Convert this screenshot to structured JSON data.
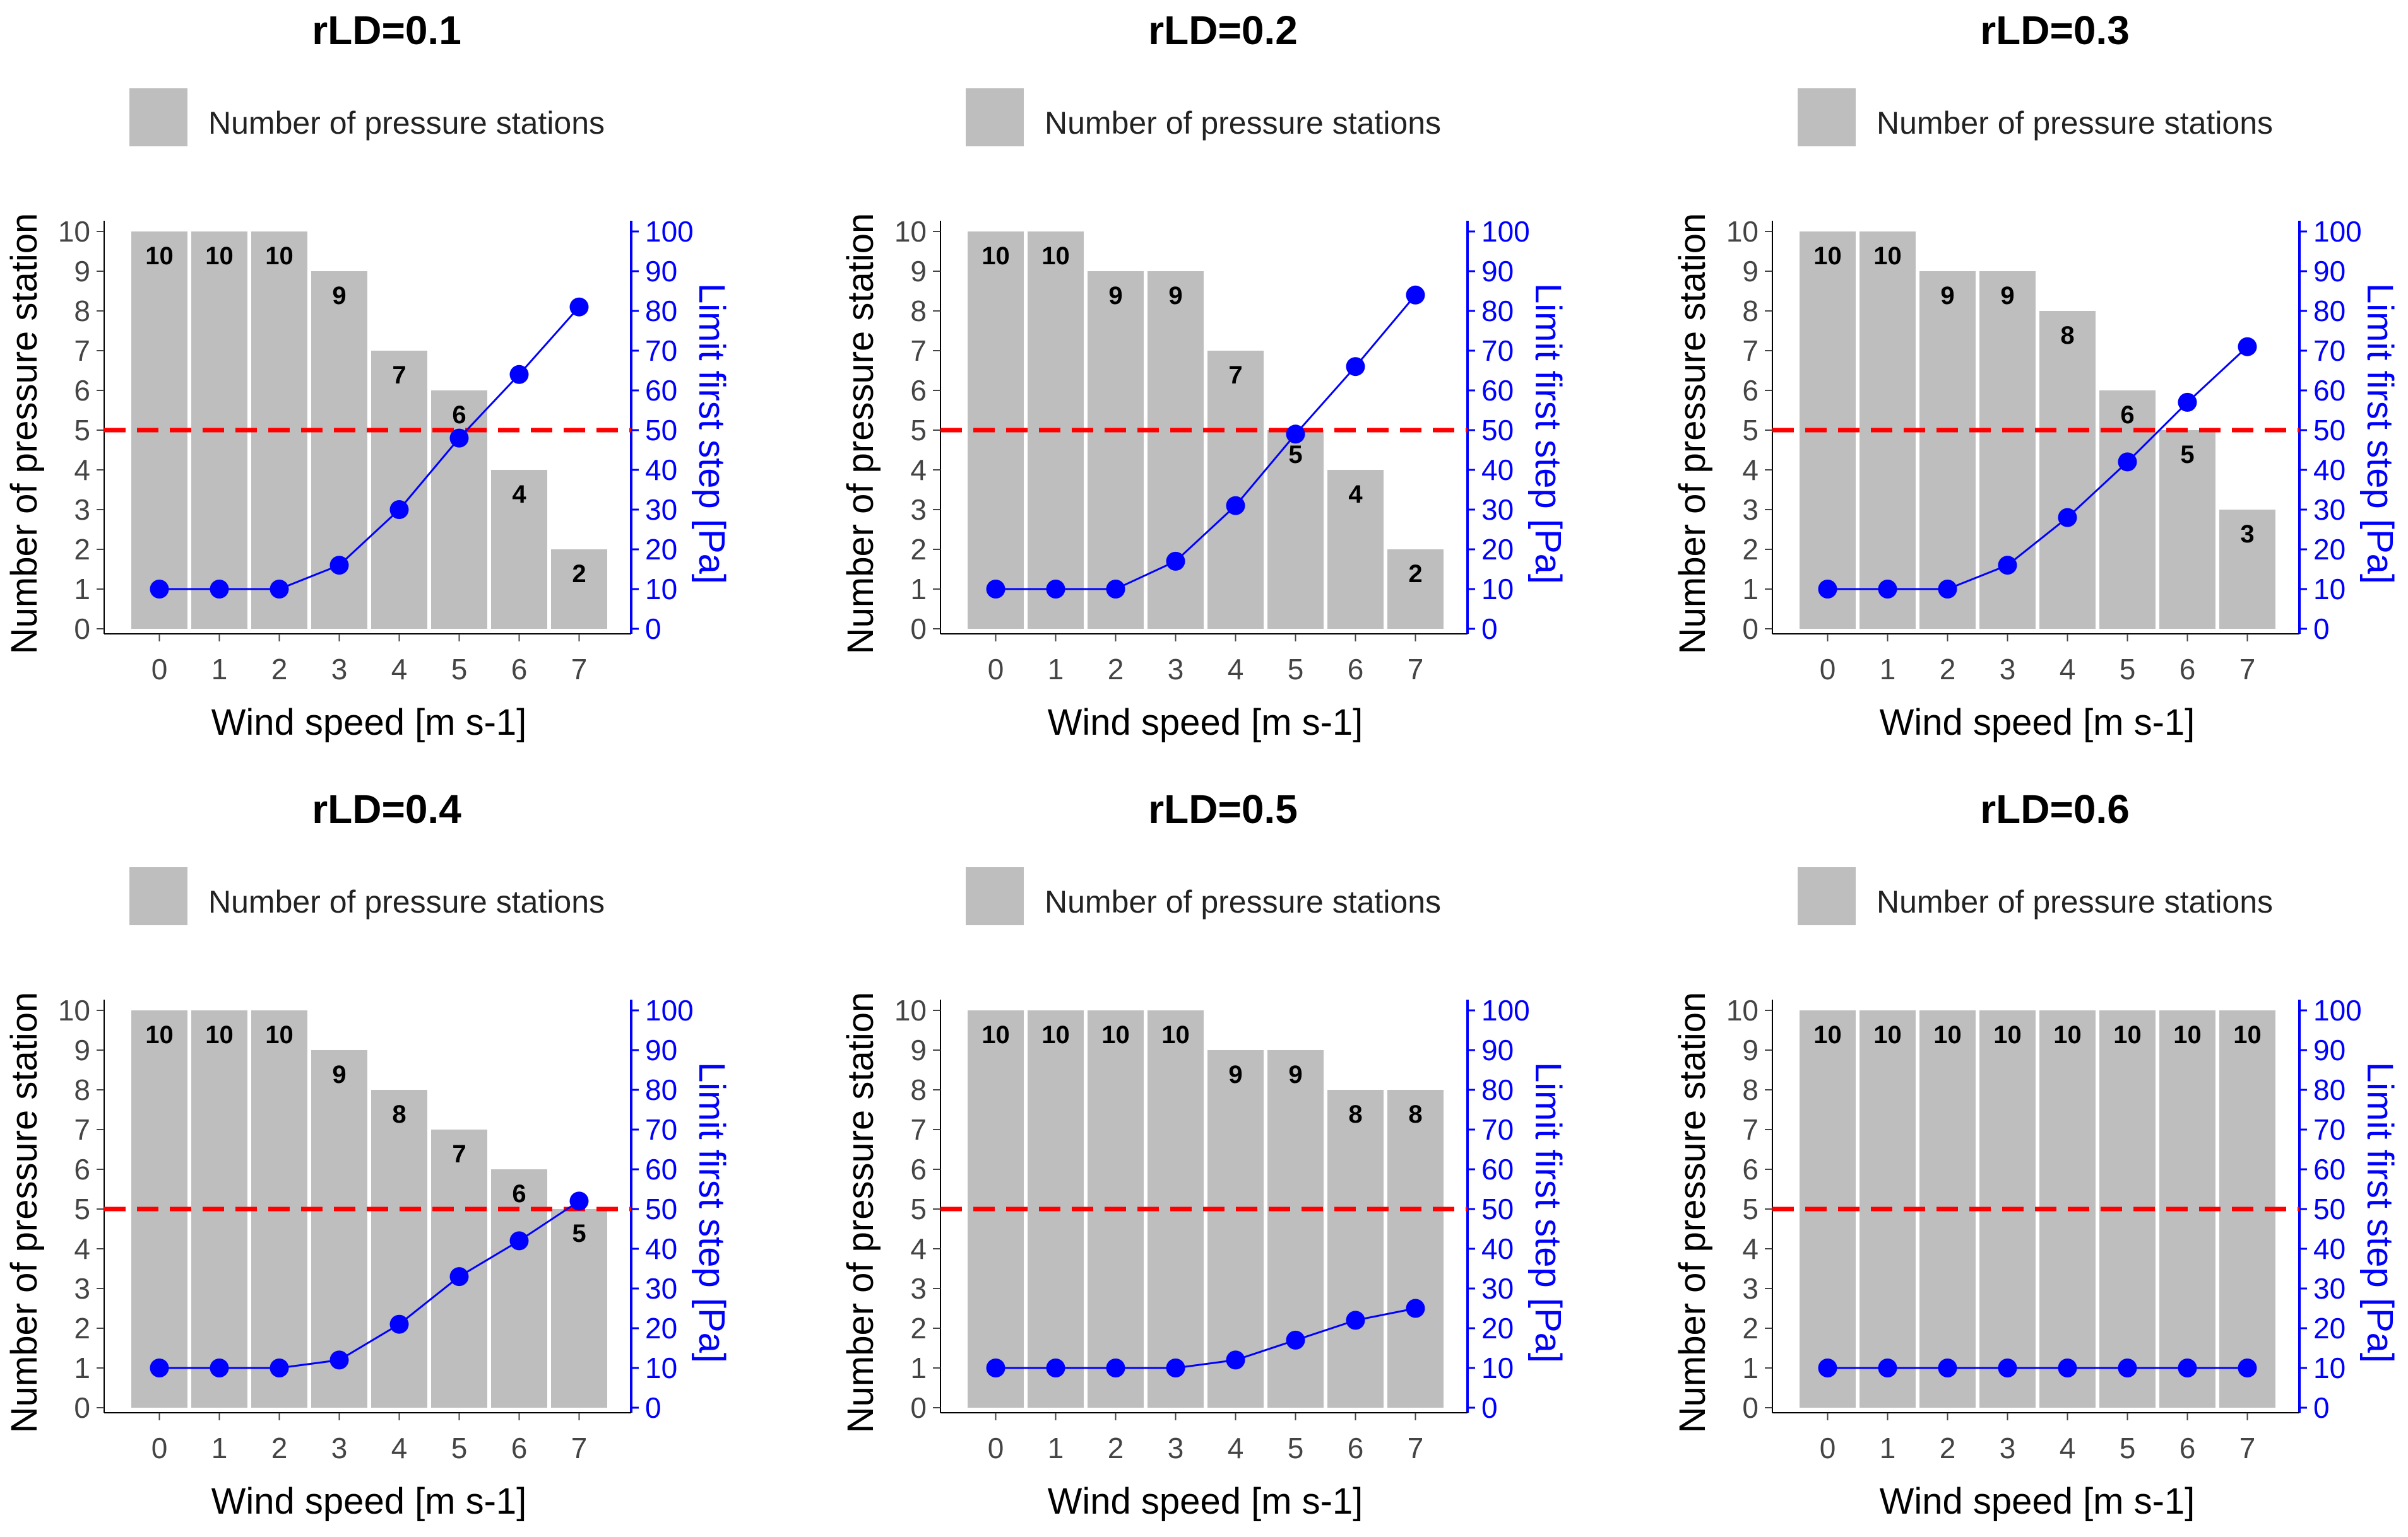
{
  "figure": {
    "legend_label": "Number of pressure stations",
    "y_label": "Number of pressure station",
    "y2_label": "Limit first step [Pa]",
    "x_label": "Wind speed [m s-1]",
    "bar_color": "#bebebe",
    "line_color": "#0000ff",
    "threshold_color": "#ff0000"
  },
  "chart_data": [
    {
      "type": "bar",
      "title": "rLD=0.1",
      "categories": [
        "0",
        "1",
        "2",
        "3",
        "4",
        "5",
        "6",
        "7"
      ],
      "series": [
        {
          "name": "Number of pressure stations",
          "type": "bar",
          "values": [
            10,
            10,
            10,
            9,
            7,
            6,
            4,
            2
          ]
        },
        {
          "name": "Limit first step [Pa]",
          "type": "line",
          "axis": "y2",
          "values": [
            10,
            10,
            10,
            16,
            30,
            48,
            64,
            81
          ]
        }
      ],
      "threshold": {
        "axis": "y",
        "value": 5,
        "style": "dashed"
      },
      "xlabel": "Wind speed [m s-1]",
      "ylabel": "Number of pressure station",
      "y2label": "Limit first step [Pa]",
      "ylim": [
        0,
        10
      ],
      "y2lim": [
        0,
        100
      ]
    },
    {
      "type": "bar",
      "title": "rLD=0.2",
      "categories": [
        "0",
        "1",
        "2",
        "3",
        "4",
        "5",
        "6",
        "7"
      ],
      "series": [
        {
          "name": "Number of pressure stations",
          "type": "bar",
          "values": [
            10,
            10,
            9,
            9,
            7,
            5,
            4,
            2
          ]
        },
        {
          "name": "Limit first step [Pa]",
          "type": "line",
          "axis": "y2",
          "values": [
            10,
            10,
            10,
            17,
            31,
            49,
            66,
            84
          ]
        }
      ],
      "threshold": {
        "axis": "y",
        "value": 5,
        "style": "dashed"
      },
      "xlabel": "Wind speed [m s-1]",
      "ylabel": "Number of pressure station",
      "y2label": "Limit first step [Pa]",
      "ylim": [
        0,
        10
      ],
      "y2lim": [
        0,
        100
      ]
    },
    {
      "type": "bar",
      "title": "rLD=0.3",
      "categories": [
        "0",
        "1",
        "2",
        "3",
        "4",
        "5",
        "6",
        "7"
      ],
      "series": [
        {
          "name": "Number of pressure stations",
          "type": "bar",
          "values": [
            10,
            10,
            9,
            9,
            8,
            6,
            5,
            3
          ]
        },
        {
          "name": "Limit first step [Pa]",
          "type": "line",
          "axis": "y2",
          "values": [
            10,
            10,
            10,
            16,
            28,
            42,
            57,
            71
          ]
        }
      ],
      "threshold": {
        "axis": "y",
        "value": 5,
        "style": "dashed"
      },
      "xlabel": "Wind speed [m s-1]",
      "ylabel": "Number of pressure station",
      "y2label": "Limit first step [Pa]",
      "ylim": [
        0,
        10
      ],
      "y2lim": [
        0,
        100
      ]
    },
    {
      "type": "bar",
      "title": "rLD=0.4",
      "categories": [
        "0",
        "1",
        "2",
        "3",
        "4",
        "5",
        "6",
        "7"
      ],
      "series": [
        {
          "name": "Number of pressure stations",
          "type": "bar",
          "values": [
            10,
            10,
            10,
            9,
            8,
            7,
            6,
            5
          ]
        },
        {
          "name": "Limit first step [Pa]",
          "type": "line",
          "axis": "y2",
          "values": [
            10,
            10,
            10,
            12,
            21,
            33,
            42,
            52
          ]
        }
      ],
      "threshold": {
        "axis": "y",
        "value": 5,
        "style": "dashed"
      },
      "xlabel": "Wind speed [m s-1]",
      "ylabel": "Number of pressure station",
      "y2label": "Limit first step [Pa]",
      "ylim": [
        0,
        10
      ],
      "y2lim": [
        0,
        100
      ]
    },
    {
      "type": "bar",
      "title": "rLD=0.5",
      "categories": [
        "0",
        "1",
        "2",
        "3",
        "4",
        "5",
        "6",
        "7"
      ],
      "series": [
        {
          "name": "Number of pressure stations",
          "type": "bar",
          "values": [
            10,
            10,
            10,
            10,
            9,
            9,
            8,
            8
          ]
        },
        {
          "name": "Limit first step [Pa]",
          "type": "line",
          "axis": "y2",
          "values": [
            10,
            10,
            10,
            10,
            12,
            17,
            22,
            25
          ]
        }
      ],
      "threshold": {
        "axis": "y",
        "value": 5,
        "style": "dashed"
      },
      "xlabel": "Wind speed [m s-1]",
      "ylabel": "Number of pressure station",
      "y2label": "Limit first step [Pa]",
      "ylim": [
        0,
        10
      ],
      "y2lim": [
        0,
        100
      ]
    },
    {
      "type": "bar",
      "title": "rLD=0.6",
      "categories": [
        "0",
        "1",
        "2",
        "3",
        "4",
        "5",
        "6",
        "7"
      ],
      "series": [
        {
          "name": "Number of pressure stations",
          "type": "bar",
          "values": [
            10,
            10,
            10,
            10,
            10,
            10,
            10,
            10
          ]
        },
        {
          "name": "Limit first step [Pa]",
          "type": "line",
          "axis": "y2",
          "values": [
            10,
            10,
            10,
            10,
            10,
            10,
            10,
            10
          ]
        }
      ],
      "threshold": {
        "axis": "y",
        "value": 5,
        "style": "dashed"
      },
      "xlabel": "Wind speed [m s-1]",
      "ylabel": "Number of pressure station",
      "y2label": "Limit first step [Pa]",
      "ylim": [
        0,
        10
      ],
      "y2lim": [
        0,
        100
      ]
    }
  ]
}
